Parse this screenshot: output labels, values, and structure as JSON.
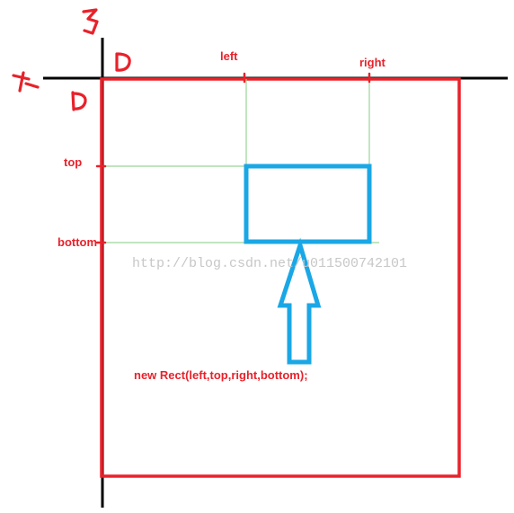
{
  "labels": {
    "y_axis": "y",
    "x_axis": "x",
    "origin_top": "0",
    "origin_left": "0",
    "left": "left",
    "right": "right",
    "top": "top",
    "bottom": "bottom",
    "constructor_call": "new Rect(left,top,right,bottom);"
  },
  "watermark": "http://blog.csdn.net/u011500742101",
  "colors": {
    "axis": "#000000",
    "screen_border": "#e8222b",
    "rect": "#1aa7e6",
    "arrow": "#1aa7e6",
    "guide_lines": "#9bd49b",
    "text": "#e8222b"
  }
}
